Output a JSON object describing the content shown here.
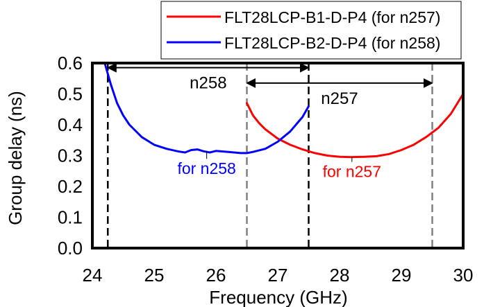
{
  "chart_data": {
    "type": "line",
    "xlabel": "Frequency (GHz)",
    "ylabel": "Group delay (ns)",
    "xlim": [
      24,
      30
    ],
    "ylim": [
      0,
      0.6
    ],
    "xticks": [
      "24",
      "25",
      "26",
      "27",
      "28",
      "29",
      "30"
    ],
    "yticks": [
      "0.0",
      "0.1",
      "0.2",
      "0.3",
      "0.4",
      "0.5",
      "0.6"
    ],
    "grid": false,
    "legend_position": "top",
    "series": [
      {
        "name": "FLT28LCP-B1-D-P4 (for n257)",
        "color": "#ff0000",
        "x": [
          26.5,
          26.6,
          26.7,
          26.8,
          27.0,
          27.2,
          27.4,
          27.6,
          27.8,
          28.0,
          28.2,
          28.4,
          28.6,
          28.8,
          29.0,
          29.2,
          29.4,
          29.6,
          29.8,
          30.0
        ],
        "y": [
          0.47,
          0.43,
          0.405,
          0.385,
          0.355,
          0.335,
          0.32,
          0.308,
          0.3,
          0.296,
          0.295,
          0.296,
          0.298,
          0.305,
          0.318,
          0.335,
          0.36,
          0.39,
          0.435,
          0.5
        ]
      },
      {
        "name": "FLT28LCP-B2-D-P4 (for n258)",
        "color": "#0000ff",
        "x": [
          24.2,
          24.3,
          24.4,
          24.5,
          24.6,
          24.8,
          25.0,
          25.2,
          25.4,
          25.5,
          25.6,
          25.7,
          25.8,
          25.9,
          26.0,
          26.2,
          26.4,
          26.5,
          26.6,
          26.8,
          27.0,
          27.2,
          27.4,
          27.5
        ],
        "y": [
          0.6,
          0.53,
          0.47,
          0.43,
          0.4,
          0.36,
          0.335,
          0.322,
          0.313,
          0.31,
          0.318,
          0.32,
          0.314,
          0.31,
          0.315,
          0.312,
          0.308,
          0.308,
          0.312,
          0.322,
          0.345,
          0.378,
          0.425,
          0.46
        ]
      }
    ],
    "vlines": [
      {
        "x": 24.25,
        "color": "#000000"
      },
      {
        "x": 26.5,
        "color": "#808080"
      },
      {
        "x": 27.5,
        "color": "#000000"
      },
      {
        "x": 29.5,
        "color": "#808080"
      }
    ],
    "ranges": [
      {
        "label": "n258",
        "from": 24.25,
        "to": 27.5,
        "y": 0.585
      },
      {
        "label": "n257",
        "from": 26.5,
        "to": 29.5,
        "y": 0.535
      }
    ],
    "annotations": [
      {
        "label": "for n258",
        "color": "#0000ff",
        "x": 25.85,
        "y": 0.24,
        "pointer_x": 25.85,
        "pointer_top": 0.315
      },
      {
        "label": "for n257",
        "color": "#ff0000",
        "x": 28.2,
        "y": 0.23,
        "pointer_x": 28.2,
        "pointer_top": 0.297
      }
    ]
  }
}
